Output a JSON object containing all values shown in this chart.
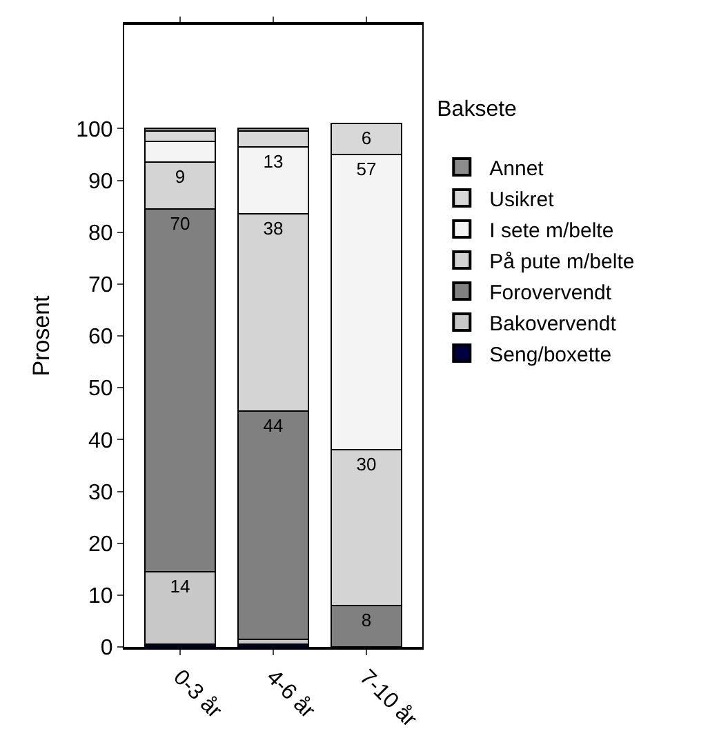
{
  "chart_data": {
    "type": "bar",
    "stacked": true,
    "ylabel": "Prosent",
    "legend_title": "Baksete",
    "categories": [
      "0-3 år",
      "4-6 år",
      "7-10 år"
    ],
    "ylim": [
      0,
      120
    ],
    "yticks": [
      0,
      10,
      20,
      30,
      40,
      50,
      60,
      70,
      80,
      90,
      100
    ],
    "grid": false,
    "legend": "right",
    "series": [
      {
        "name": "Seng/boxette",
        "color": "#000040",
        "values": [
          0.5,
          0.5,
          0
        ],
        "value_labels": [
          null,
          null,
          null
        ]
      },
      {
        "name": "Bakovervendt",
        "color": "#c8c8c8",
        "values": [
          14,
          1,
          0
        ],
        "value_labels": [
          "14",
          null,
          null
        ]
      },
      {
        "name": "Forovervendt",
        "color": "#808080",
        "values": [
          70,
          44,
          8
        ],
        "value_labels": [
          "70",
          "44",
          "8"
        ]
      },
      {
        "name": "På pute m/belte",
        "color": "#d4d4d4",
        "values": [
          9,
          38,
          30
        ],
        "value_labels": [
          "9",
          "38",
          "30"
        ]
      },
      {
        "name": "I sete m/belte",
        "color": "#f4f4f4",
        "values": [
          4,
          13,
          57
        ],
        "value_labels": [
          null,
          "13",
          "57"
        ]
      },
      {
        "name": "Usikret",
        "color": "#d8d8d8",
        "values": [
          2,
          3,
          6
        ],
        "value_labels": [
          null,
          null,
          "6"
        ]
      },
      {
        "name": "Annet",
        "color": "#8c8c8c",
        "values": [
          0.5,
          0.5,
          0
        ],
        "value_labels": [
          null,
          null,
          null
        ]
      }
    ]
  }
}
